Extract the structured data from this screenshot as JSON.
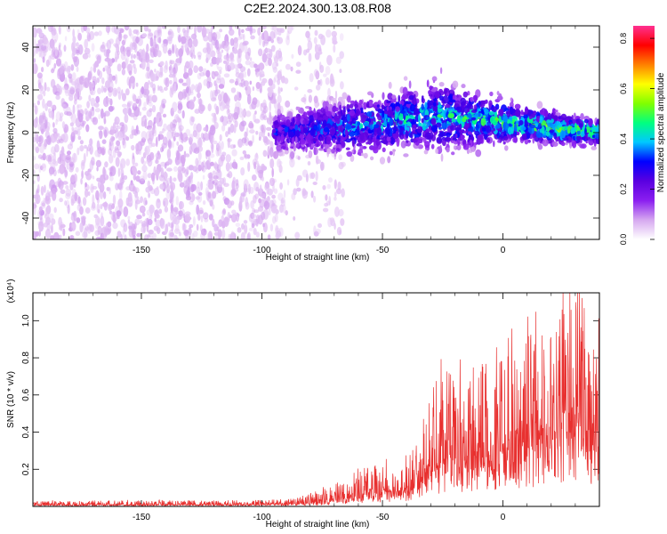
{
  "title": "C2E2.2024.300.13.08.R08",
  "chart_data": [
    {
      "type": "heatmap",
      "xlabel": "Height of straight line (km)",
      "ylabel": "Frequency (Hz)",
      "xlim": [
        -195,
        40
      ],
      "ylim": [
        -50,
        50
      ],
      "x_ticks": [
        -150,
        -100,
        -50,
        0
      ],
      "y_ticks": [
        -40,
        -20,
        0,
        20,
        40
      ],
      "colorbar": {
        "label": "Normalized spectral amplitude",
        "range": [
          0.0,
          0.85
        ],
        "ticks": [
          0.0,
          0.2,
          0.4,
          0.6,
          0.8
        ],
        "colors": [
          "#ffffff",
          "#d6a8f0",
          "#8b1ff0",
          "#5a00e0",
          "#0000ff",
          "#00c8ff",
          "#00ff80",
          "#80ff00",
          "#ffff00",
          "#ff8000",
          "#ff0000",
          "#ff3090"
        ]
      },
      "regions": [
        {
          "x_range": [
            -195,
            -78
          ],
          "frequency_range": [
            -50,
            50
          ],
          "amplitude": [
            0.0,
            0.15
          ],
          "description_level": "broadband noise"
        },
        {
          "x_range": [
            -95,
            40
          ],
          "frequency_center": [
            0,
            3,
            8,
            4,
            0
          ],
          "frequency_halfwidth": [
            9,
            12,
            14,
            8,
            5
          ],
          "amplitude_peak": [
            0.3,
            0.4,
            0.45,
            0.5,
            0.55
          ]
        }
      ]
    },
    {
      "type": "line",
      "xlabel": "Height of straight line (km)",
      "ylabel": "SNR (10 * v/v)",
      "y_multiplier": "(x10⁴)",
      "xlim": [
        -195,
        40
      ],
      "ylim": [
        0,
        1.15
      ],
      "x_ticks": [
        -150,
        -100,
        -50,
        0
      ],
      "y_ticks": [
        0.2,
        0.4,
        0.6,
        0.8,
        1.0
      ],
      "y_tick_labels": [
        "0.2",
        "0.4",
        "0.6",
        "0.8",
        "1.0"
      ],
      "series": [
        {
          "color": "#e8302f",
          "envelope_x": [
            -195,
            -100,
            -85,
            -70,
            -60,
            -50,
            -40,
            -34,
            -33,
            -20,
            -10,
            0,
            10,
            20,
            30,
            40
          ],
          "envelope_base": [
            0.005,
            0.006,
            0.01,
            0.02,
            0.04,
            0.05,
            0.06,
            0.08,
            0.15,
            0.18,
            0.2,
            0.22,
            0.25,
            0.28,
            0.3,
            0.3
          ],
          "envelope_peak": [
            0.03,
            0.035,
            0.05,
            0.12,
            0.2,
            0.24,
            0.28,
            0.35,
            0.7,
            0.75,
            0.8,
            0.85,
            0.95,
            1.05,
            1.15,
            1.0
          ]
        }
      ]
    }
  ]
}
